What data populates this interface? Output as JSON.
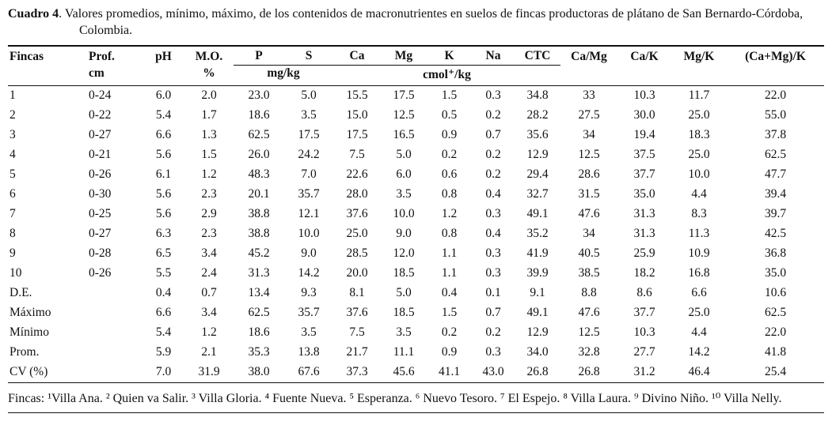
{
  "title": {
    "label": "Cuadro 4",
    "text": ". Valores promedios, mínimo, máximo, de los contenidos de macronutrientes en suelos de fincas productoras de plátano de San Bernardo-Córdoba, Colombia."
  },
  "table": {
    "columns": [
      "Fincas",
      "Prof.",
      "pH",
      "M.O.",
      "P",
      "S",
      "Ca",
      "Mg",
      "K",
      "Na",
      "CTC",
      "Ca/Mg",
      "Ca/K",
      "Mg/K",
      "(Ca+Mg)/K"
    ],
    "units": {
      "prof": "cm",
      "mo": "%",
      "ps": "mg/kg",
      "cmol": "cmol⁺/kg"
    },
    "rows": [
      [
        "1",
        "0-24",
        "6.0",
        "2.0",
        "23.0",
        "5.0",
        "15.5",
        "17.5",
        "1.5",
        "0.3",
        "34.8",
        "33",
        "10.3",
        "11.7",
        "22.0"
      ],
      [
        "2",
        "0-22",
        "5.4",
        "1.7",
        "18.6",
        "3.5",
        "15.0",
        "12.5",
        "0.5",
        "0.2",
        "28.2",
        "27.5",
        "30.0",
        "25.0",
        "55.0"
      ],
      [
        "3",
        "0-27",
        "6.6",
        "1.3",
        "62.5",
        "17.5",
        "17.5",
        "16.5",
        "0.9",
        "0.7",
        "35.6",
        "34",
        "19.4",
        "18.3",
        "37.8"
      ],
      [
        "4",
        "0-21",
        "5.6",
        "1.5",
        "26.0",
        "24.2",
        "7.5",
        "5.0",
        "0.2",
        "0.2",
        "12.9",
        "12.5",
        "37.5",
        "25.0",
        "62.5"
      ],
      [
        "5",
        "0-26",
        "6.1",
        "1.2",
        "48.3",
        "7.0",
        "22.6",
        "6.0",
        "0.6",
        "0.2",
        "29.4",
        "28.6",
        "37.7",
        "10.0",
        "47.7"
      ],
      [
        "6",
        "0-30",
        "5.6",
        "2.3",
        "20.1",
        "35.7",
        "28.0",
        "3.5",
        "0.8",
        "0.4",
        "32.7",
        "31.5",
        "35.0",
        "4.4",
        "39.4"
      ],
      [
        "7",
        "0-25",
        "5.6",
        "2.9",
        "38.8",
        "12.1",
        "37.6",
        "10.0",
        "1.2",
        "0.3",
        "49.1",
        "47.6",
        "31.3",
        "8.3",
        "39.7"
      ],
      [
        "8",
        "0-27",
        "6.3",
        "2.3",
        "38.8",
        "10.0",
        "25.0",
        "9.0",
        "0.8",
        "0.4",
        "35.2",
        "34",
        "31.3",
        "11.3",
        "42.5"
      ],
      [
        "9",
        "0-28",
        "6.5",
        "3.4",
        "45.2",
        "9.0",
        "28.5",
        "12.0",
        "1.1",
        "0.3",
        "41.9",
        "40.5",
        "25.9",
        "10.9",
        "36.8"
      ],
      [
        "10",
        "0-26",
        "5.5",
        "2.4",
        "31.3",
        "14.2",
        "20.0",
        "18.5",
        "1.1",
        "0.3",
        "39.9",
        "38.5",
        "18.2",
        "16.8",
        "35.0"
      ],
      [
        "D.E.",
        "",
        "0.4",
        "0.7",
        "13.4",
        "9.3",
        "8.1",
        "5.0",
        "0.4",
        "0.1",
        "9.1",
        "8.8",
        "8.6",
        "6.6",
        "10.6"
      ],
      [
        "Máximo",
        "",
        "6.6",
        "3.4",
        "62.5",
        "35.7",
        "37.6",
        "18.5",
        "1.5",
        "0.7",
        "49.1",
        "47.6",
        "37.7",
        "25.0",
        "62.5"
      ],
      [
        "Mínimo",
        "",
        "5.4",
        "1.2",
        "18.6",
        "3.5",
        "7.5",
        "3.5",
        "0.2",
        "0.2",
        "12.9",
        "12.5",
        "10.3",
        "4.4",
        "22.0"
      ],
      [
        "Prom.",
        "",
        "5.9",
        "2.1",
        "35.3",
        "13.8",
        "21.7",
        "11.1",
        "0.9",
        "0.3",
        "34.0",
        "32.8",
        "27.7",
        "14.2",
        "41.8"
      ],
      [
        "CV (%)",
        "",
        "7.0",
        "31.9",
        "38.0",
        "67.6",
        "37.3",
        "45.6",
        "41.1",
        "43.0",
        "26.8",
        "26.8",
        "31.2",
        "46.4",
        "25.4"
      ]
    ]
  },
  "footnote": "Fincas: ¹Villa Ana. ² Quien va Salir. ³ Villa Gloria. ⁴ Fuente Nueva. ⁵ Esperanza. ⁶ Nuevo Tesoro. ⁷ El Espejo. ⁸ Villa Laura. ⁹ Divino Niño. ¹⁰ Villa Nelly."
}
